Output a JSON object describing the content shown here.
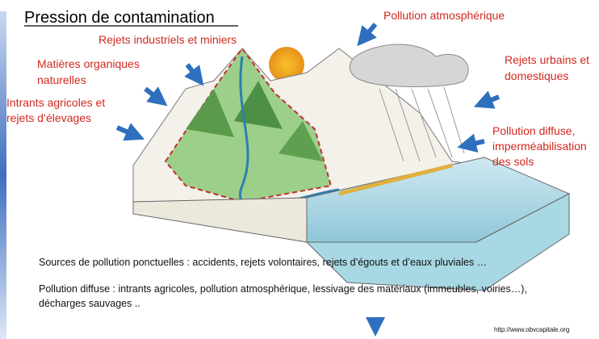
{
  "title": "Pression de contamination",
  "labels": [
    {
      "lines": [
        "Pollution atmosphérique"
      ]
    },
    {
      "lines": [
        "Rejets industriels et miniers"
      ]
    },
    {
      "lines": [
        "Matières organiques",
        "naturelles"
      ]
    },
    {
      "lines": [
        "Intrants agricoles et",
        "rejets d’élevages"
      ]
    },
    {
      "lines": [
        "Rejets urbains et",
        "domestiques"
      ]
    },
    {
      "lines": [
        "Pollution diffuse,",
        "imperméabilisation",
        "des sols"
      ]
    }
  ],
  "paragraphs": [
    {
      "lines": [
        "Sources de pollution ponctuelles : accidents, rejets volontaires, rejets d’égouts et d’eaux pluviales …"
      ]
    },
    {
      "lines": [
        "Pollution diffuse : intrants agricoles, pollution atmosphérique, lessivage des matériaux (immeubles, voiries…),",
        "décharges sauvages .."
      ]
    }
  ],
  "source": "http://www.obvcapitale.org"
}
